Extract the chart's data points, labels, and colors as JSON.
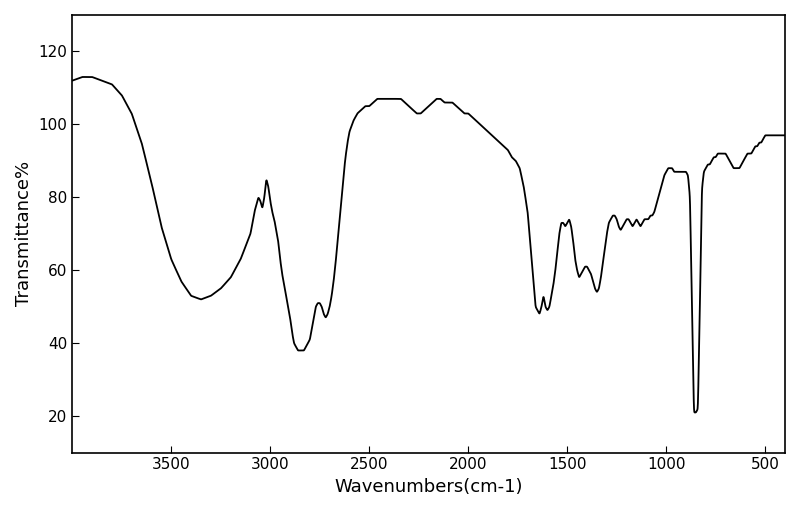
{
  "title": "",
  "xlabel": "Wavenumbers(cm-1)",
  "ylabel": "Transmittance%",
  "xlim": [
    4000,
    400
  ],
  "ylim": [
    10,
    130
  ],
  "xticks": [
    3500,
    3000,
    2500,
    2000,
    1500,
    1000,
    500
  ],
  "yticks": [
    20,
    40,
    60,
    80,
    100,
    120
  ],
  "line_color": "#000000",
  "line_width": 1.3,
  "background_color": "#ffffff",
  "control_points": [
    [
      4000,
      112
    ],
    [
      3950,
      113
    ],
    [
      3900,
      113
    ],
    [
      3850,
      112
    ],
    [
      3800,
      111
    ],
    [
      3750,
      108
    ],
    [
      3700,
      103
    ],
    [
      3650,
      95
    ],
    [
      3600,
      84
    ],
    [
      3550,
      72
    ],
    [
      3500,
      63
    ],
    [
      3450,
      57
    ],
    [
      3400,
      53
    ],
    [
      3350,
      52
    ],
    [
      3300,
      53
    ],
    [
      3250,
      55
    ],
    [
      3200,
      58
    ],
    [
      3150,
      63
    ],
    [
      3100,
      70
    ],
    [
      3080,
      76
    ],
    [
      3060,
      80
    ],
    [
      3050,
      79
    ],
    [
      3040,
      77
    ],
    [
      3030,
      80
    ],
    [
      3020,
      85
    ],
    [
      3010,
      83
    ],
    [
      3000,
      79
    ],
    [
      2990,
      76
    ],
    [
      2980,
      74
    ],
    [
      2970,
      71
    ],
    [
      2960,
      68
    ],
    [
      2950,
      63
    ],
    [
      2940,
      59
    ],
    [
      2930,
      56
    ],
    [
      2920,
      53
    ],
    [
      2910,
      50
    ],
    [
      2900,
      47
    ],
    [
      2890,
      43
    ],
    [
      2880,
      40
    ],
    [
      2870,
      39
    ],
    [
      2860,
      38
    ],
    [
      2850,
      38
    ],
    [
      2840,
      38
    ],
    [
      2830,
      38
    ],
    [
      2820,
      39
    ],
    [
      2810,
      40
    ],
    [
      2800,
      41
    ],
    [
      2790,
      44
    ],
    [
      2780,
      47
    ],
    [
      2770,
      50
    ],
    [
      2760,
      51
    ],
    [
      2750,
      51
    ],
    [
      2740,
      50
    ],
    [
      2730,
      48
    ],
    [
      2720,
      47
    ],
    [
      2710,
      48
    ],
    [
      2700,
      50
    ],
    [
      2690,
      53
    ],
    [
      2680,
      57
    ],
    [
      2670,
      62
    ],
    [
      2660,
      68
    ],
    [
      2650,
      74
    ],
    [
      2640,
      80
    ],
    [
      2630,
      86
    ],
    [
      2620,
      91
    ],
    [
      2610,
      95
    ],
    [
      2600,
      98
    ],
    [
      2580,
      101
    ],
    [
      2560,
      103
    ],
    [
      2540,
      104
    ],
    [
      2520,
      105
    ],
    [
      2500,
      105
    ],
    [
      2480,
      106
    ],
    [
      2460,
      107
    ],
    [
      2440,
      107
    ],
    [
      2420,
      107
    ],
    [
      2400,
      107
    ],
    [
      2380,
      107
    ],
    [
      2360,
      107
    ],
    [
      2340,
      107
    ],
    [
      2320,
      106
    ],
    [
      2300,
      105
    ],
    [
      2280,
      104
    ],
    [
      2260,
      103
    ],
    [
      2240,
      103
    ],
    [
      2220,
      104
    ],
    [
      2200,
      105
    ],
    [
      2180,
      106
    ],
    [
      2160,
      107
    ],
    [
      2140,
      107
    ],
    [
      2120,
      106
    ],
    [
      2100,
      106
    ],
    [
      2080,
      106
    ],
    [
      2060,
      105
    ],
    [
      2040,
      104
    ],
    [
      2020,
      103
    ],
    [
      2000,
      103
    ],
    [
      1980,
      102
    ],
    [
      1960,
      101
    ],
    [
      1940,
      100
    ],
    [
      1920,
      99
    ],
    [
      1900,
      98
    ],
    [
      1880,
      97
    ],
    [
      1860,
      96
    ],
    [
      1840,
      95
    ],
    [
      1820,
      94
    ],
    [
      1800,
      93
    ],
    [
      1780,
      91
    ],
    [
      1760,
      90
    ],
    [
      1740,
      88
    ],
    [
      1720,
      83
    ],
    [
      1700,
      76
    ],
    [
      1680,
      63
    ],
    [
      1660,
      50
    ],
    [
      1640,
      48
    ],
    [
      1630,
      50
    ],
    [
      1620,
      53
    ],
    [
      1610,
      50
    ],
    [
      1600,
      49
    ],
    [
      1590,
      50
    ],
    [
      1580,
      53
    ],
    [
      1570,
      56
    ],
    [
      1560,
      60
    ],
    [
      1550,
      65
    ],
    [
      1540,
      70
    ],
    [
      1530,
      73
    ],
    [
      1520,
      73
    ],
    [
      1510,
      72
    ],
    [
      1500,
      73
    ],
    [
      1490,
      74
    ],
    [
      1480,
      72
    ],
    [
      1470,
      68
    ],
    [
      1460,
      63
    ],
    [
      1450,
      60
    ],
    [
      1440,
      58
    ],
    [
      1430,
      59
    ],
    [
      1420,
      60
    ],
    [
      1410,
      61
    ],
    [
      1400,
      61
    ],
    [
      1390,
      60
    ],
    [
      1380,
      59
    ],
    [
      1370,
      57
    ],
    [
      1360,
      55
    ],
    [
      1350,
      54
    ],
    [
      1340,
      55
    ],
    [
      1330,
      58
    ],
    [
      1320,
      62
    ],
    [
      1310,
      66
    ],
    [
      1300,
      70
    ],
    [
      1290,
      73
    ],
    [
      1280,
      74
    ],
    [
      1270,
      75
    ],
    [
      1260,
      75
    ],
    [
      1250,
      74
    ],
    [
      1240,
      72
    ],
    [
      1230,
      71
    ],
    [
      1220,
      72
    ],
    [
      1210,
      73
    ],
    [
      1200,
      74
    ],
    [
      1190,
      74
    ],
    [
      1180,
      73
    ],
    [
      1170,
      72
    ],
    [
      1160,
      73
    ],
    [
      1150,
      74
    ],
    [
      1140,
      73
    ],
    [
      1130,
      72
    ],
    [
      1120,
      73
    ],
    [
      1110,
      74
    ],
    [
      1100,
      74
    ],
    [
      1090,
      74
    ],
    [
      1080,
      75
    ],
    [
      1070,
      75
    ],
    [
      1060,
      76
    ],
    [
      1050,
      78
    ],
    [
      1040,
      80
    ],
    [
      1030,
      82
    ],
    [
      1020,
      84
    ],
    [
      1010,
      86
    ],
    [
      1000,
      87
    ],
    [
      990,
      88
    ],
    [
      980,
      88
    ],
    [
      970,
      88
    ],
    [
      960,
      87
    ],
    [
      950,
      87
    ],
    [
      940,
      87
    ],
    [
      930,
      87
    ],
    [
      920,
      87
    ],
    [
      910,
      87
    ],
    [
      900,
      87
    ],
    [
      890,
      86
    ],
    [
      880,
      80
    ],
    [
      870,
      50
    ],
    [
      860,
      21
    ],
    [
      850,
      21
    ],
    [
      840,
      22
    ],
    [
      830,
      50
    ],
    [
      820,
      82
    ],
    [
      810,
      87
    ],
    [
      800,
      88
    ],
    [
      790,
      89
    ],
    [
      780,
      89
    ],
    [
      770,
      90
    ],
    [
      760,
      91
    ],
    [
      750,
      91
    ],
    [
      740,
      92
    ],
    [
      730,
      92
    ],
    [
      720,
      92
    ],
    [
      710,
      92
    ],
    [
      700,
      92
    ],
    [
      690,
      91
    ],
    [
      680,
      90
    ],
    [
      670,
      89
    ],
    [
      660,
      88
    ],
    [
      650,
      88
    ],
    [
      640,
      88
    ],
    [
      630,
      88
    ],
    [
      620,
      89
    ],
    [
      610,
      90
    ],
    [
      600,
      91
    ],
    [
      590,
      92
    ],
    [
      580,
      92
    ],
    [
      570,
      92
    ],
    [
      560,
      93
    ],
    [
      550,
      94
    ],
    [
      540,
      94
    ],
    [
      530,
      95
    ],
    [
      520,
      95
    ],
    [
      510,
      96
    ],
    [
      500,
      97
    ],
    [
      490,
      97
    ],
    [
      480,
      97
    ],
    [
      470,
      97
    ],
    [
      460,
      97
    ],
    [
      450,
      97
    ],
    [
      440,
      97
    ],
    [
      430,
      97
    ],
    [
      420,
      97
    ],
    [
      410,
      97
    ],
    [
      400,
      97
    ]
  ]
}
